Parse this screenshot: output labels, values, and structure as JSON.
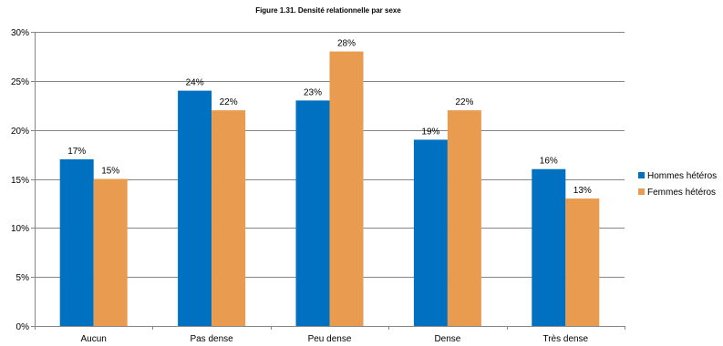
{
  "chart_data": {
    "type": "bar",
    "title": "Figure 1.31. Densité relationnelle par sexe",
    "xlabel": "",
    "ylabel": "",
    "categories": [
      "Aucun",
      "Pas dense",
      "Peu dense",
      "Dense",
      "Très dense"
    ],
    "series": [
      {
        "name": "Hommes hétéros",
        "color": "#0070C0",
        "values": [
          17,
          24,
          23,
          19,
          16
        ],
        "labels": [
          "17%",
          "24%",
          "23%",
          "19%",
          "16%"
        ]
      },
      {
        "name": "Femmes hétéros",
        "color": "#E99C50",
        "values": [
          15,
          22,
          28,
          22,
          13
        ],
        "labels": [
          "15%",
          "22%",
          "28%",
          "22%",
          "13%"
        ]
      }
    ],
    "ylim": [
      0,
      30
    ],
    "yticks": [
      0,
      5,
      10,
      15,
      20,
      25,
      30
    ],
    "ytick_labels": [
      "0%",
      "5%",
      "10%",
      "15%",
      "20%",
      "25%",
      "30%"
    ],
    "grid": true,
    "legend_position": "right"
  }
}
